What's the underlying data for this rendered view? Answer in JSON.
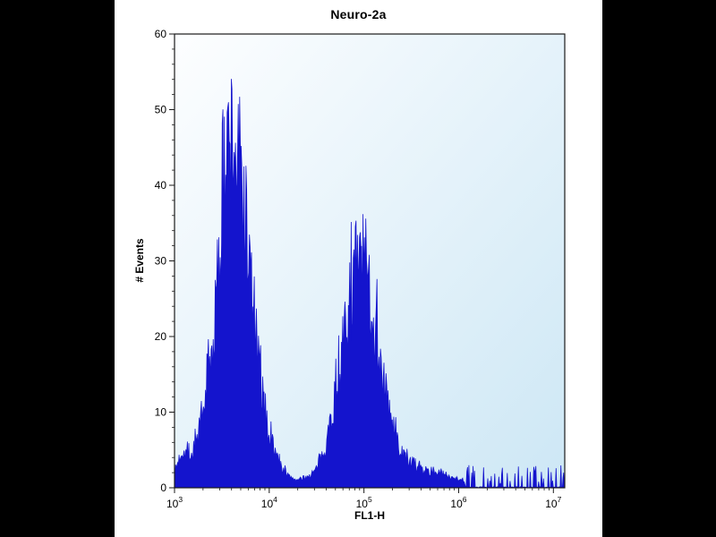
{
  "window": {
    "background": "#000000",
    "panel_background": "#ffffff"
  },
  "chart_data": {
    "type": "area",
    "subtype": "flow-cytometry-histogram",
    "title": "Neuro-2a",
    "xlabel": "FL1-H",
    "ylabel": "# Events",
    "x_scale": "log10",
    "x_decades": [
      3,
      4,
      5,
      6,
      7
    ],
    "xlim_log10": [
      3,
      7.12
    ],
    "ylim": [
      0,
      60
    ],
    "y_major_ticks": [
      0,
      10,
      20,
      30,
      40,
      50,
      60
    ],
    "y_minor_step": 2,
    "grid": false,
    "legend": "none",
    "fill_color": "#1414cd",
    "plot_bg_gradient": [
      "#fdfeff",
      "#cde7f5"
    ],
    "frame_color": "#1a1a1a",
    "spike_seed": 7,
    "spike_amplitude": 0.55,
    "n_bins": 560,
    "peaks": [
      {
        "approx_center_x": 4000,
        "max_events": 60,
        "typical_body_events": 46
      },
      {
        "approx_center_x": 90000,
        "max_events": 38,
        "typical_body_events": 30
      }
    ],
    "series": [
      {
        "name": "Neuro-2a events",
        "envelope": [
          [
            1000,
            2
          ],
          [
            1200,
            5
          ],
          [
            1500,
            4
          ],
          [
            2000,
            9
          ],
          [
            2500,
            18
          ],
          [
            3000,
            30
          ],
          [
            3500,
            42
          ],
          [
            4000,
            46
          ],
          [
            4500,
            44
          ],
          [
            5200,
            40
          ],
          [
            6000,
            31
          ],
          [
            7000,
            22
          ],
          [
            8000,
            14
          ],
          [
            10000,
            7
          ],
          [
            13000,
            3
          ],
          [
            16000,
            1.5
          ],
          [
            20000,
            1
          ],
          [
            26000,
            1.5
          ],
          [
            32000,
            2.5
          ],
          [
            40000,
            6
          ],
          [
            50000,
            12
          ],
          [
            60000,
            18
          ],
          [
            70000,
            24
          ],
          [
            80000,
            28
          ],
          [
            95000,
            30
          ],
          [
            110000,
            27
          ],
          [
            130000,
            22
          ],
          [
            160000,
            14
          ],
          [
            200000,
            8
          ],
          [
            250000,
            4.5
          ],
          [
            320000,
            3
          ],
          [
            400000,
            2.5
          ],
          [
            500000,
            2
          ],
          [
            650000,
            2
          ],
          [
            800000,
            1.5
          ],
          [
            1000000,
            1.2
          ],
          [
            1500000,
            0.6
          ],
          [
            2500000,
            0.4
          ],
          [
            4000000,
            0.3
          ],
          [
            7000000,
            0.4
          ],
          [
            12000000,
            0.6
          ]
        ]
      }
    ]
  }
}
